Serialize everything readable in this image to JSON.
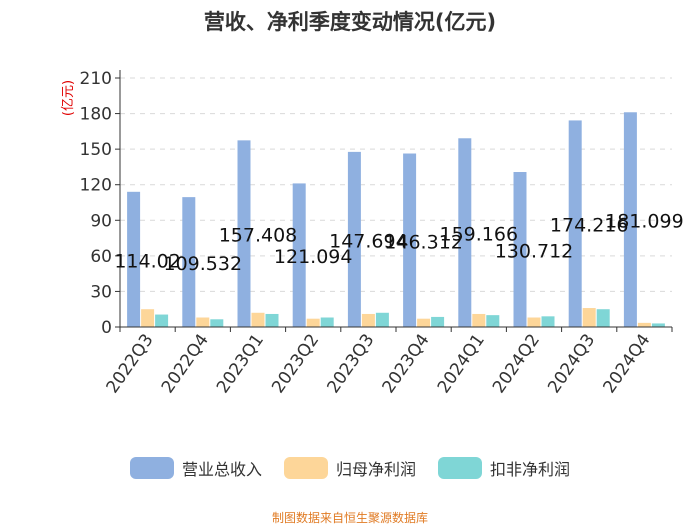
{
  "title": "营收、净利季度变动情况(亿元)",
  "source": "制图数据来自恒生聚源数据库",
  "colors": {
    "revenue": "#8fb0e0",
    "net_profit": "#fdd699",
    "deducted_profit": "#7fd6d6"
  },
  "chart_data": {
    "type": "bar",
    "title": "营收、净利季度变动情况(亿元)",
    "ylabel": "(亿元)",
    "xlabel": "",
    "ylim": [
      0,
      210
    ],
    "yticks": [
      0,
      30,
      60,
      90,
      120,
      150,
      180,
      210
    ],
    "grid": true,
    "legend_position": "bottom",
    "categories": [
      "2022Q3",
      "2022Q4",
      "2023Q1",
      "2023Q2",
      "2023Q3",
      "2023Q4",
      "2024Q1",
      "2024Q2",
      "2024Q3",
      "2024Q4"
    ],
    "data_labels": [
      "114.02",
      "109.532",
      "157.408",
      "121.094",
      "147.694",
      "146.312",
      "159.166",
      "130.712",
      "174.216",
      "181.099"
    ],
    "series": [
      {
        "name": "营业总收入",
        "color": "#8fb0e0",
        "values": [
          114.02,
          109.532,
          157.408,
          121.094,
          147.694,
          146.312,
          159.166,
          130.712,
          174.216,
          181.099
        ]
      },
      {
        "name": "归母净利润",
        "color": "#fdd699",
        "values": [
          15,
          8,
          12,
          7,
          11,
          7,
          11,
          8,
          16,
          3.5
        ]
      },
      {
        "name": "扣非净利润",
        "color": "#7fd6d6",
        "values": [
          10.5,
          6.5,
          11,
          8,
          12,
          8.5,
          10,
          9,
          15,
          3
        ]
      }
    ]
  }
}
